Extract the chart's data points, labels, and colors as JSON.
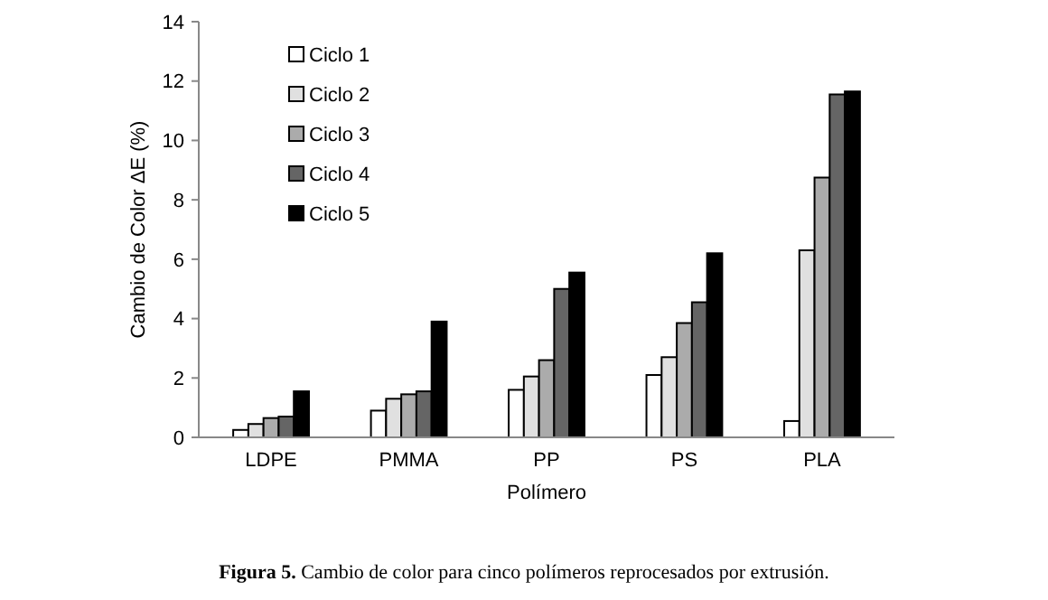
{
  "chart_data": {
    "type": "bar",
    "xlabel": "Polímero",
    "ylabel": "Cambio de Color ΔE (%)",
    "categories": [
      "LDPE",
      "PMMA",
      "PP",
      "PS",
      "PLA"
    ],
    "series": [
      {
        "name": "Ciclo 1",
        "color": "#ffffff",
        "values": [
          0.25,
          0.9,
          1.6,
          2.1,
          0.55
        ]
      },
      {
        "name": "Ciclo 2",
        "color": "#e0e0e0",
        "values": [
          0.45,
          1.3,
          2.05,
          2.7,
          6.3
        ]
      },
      {
        "name": "Ciclo 3",
        "color": "#ababab",
        "values": [
          0.65,
          1.45,
          2.6,
          3.85,
          8.75
        ]
      },
      {
        "name": "Ciclo 4",
        "color": "#656565",
        "values": [
          0.7,
          1.55,
          5.0,
          4.55,
          11.55
        ]
      },
      {
        "name": "Ciclo 5",
        "color": "#000000",
        "values": [
          1.55,
          3.9,
          5.55,
          6.2,
          11.65
        ]
      }
    ],
    "ylim": [
      0,
      14
    ],
    "yticks": [
      0,
      2,
      4,
      6,
      8,
      10,
      12,
      14
    ],
    "grid": false,
    "legend": "top left",
    "annotations": [
      "Figura 5. Cambio de color para cinco polímeros reprocesados por extrusión."
    ]
  }
}
